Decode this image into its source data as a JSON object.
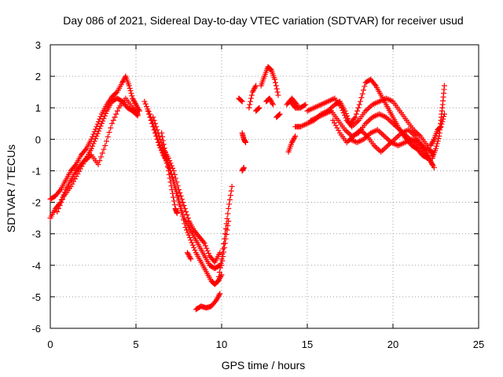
{
  "chart_data": {
    "type": "scatter",
    "title": "Day 086 of 2021, Sidereal Day-to-day VTEC variation (SDTVAR) for receiver usud",
    "xlabel": "GPS time / hours",
    "ylabel": "SDTVAR / TECUs",
    "xlim": [
      0,
      25
    ],
    "ylim": [
      -6,
      3
    ],
    "xticks": [
      0,
      5,
      10,
      15,
      20,
      25
    ],
    "yticks": [
      -6,
      -5,
      -4,
      -3,
      -2,
      -1,
      0,
      1,
      2,
      3
    ],
    "grid": true,
    "marker": "+",
    "series_color": "#ff0000",
    "tracks": [
      [
        [
          0.0,
          -1.9
        ],
        [
          0.3,
          -1.8
        ],
        [
          0.6,
          -1.6
        ],
        [
          0.9,
          -1.3
        ],
        [
          1.2,
          -1.0
        ],
        [
          1.5,
          -0.8
        ],
        [
          1.8,
          -0.5
        ],
        [
          2.1,
          -0.3
        ],
        [
          2.4,
          0.0
        ],
        [
          2.7,
          0.4
        ],
        [
          3.0,
          0.8
        ],
        [
          3.3,
          1.1
        ],
        [
          3.6,
          1.35
        ],
        [
          3.9,
          1.5
        ],
        [
          4.2,
          1.8
        ],
        [
          4.4,
          2.0
        ],
        [
          4.6,
          1.7
        ],
        [
          4.8,
          1.3
        ],
        [
          5.0,
          1.1
        ],
        [
          5.2,
          0.9
        ]
      ],
      [
        [
          0.0,
          -2.5
        ],
        [
          0.3,
          -2.2
        ],
        [
          0.6,
          -2.0
        ],
        [
          0.9,
          -1.6
        ],
        [
          1.2,
          -1.3
        ],
        [
          1.5,
          -1.0
        ],
        [
          1.8,
          -0.8
        ],
        [
          2.1,
          -0.6
        ],
        [
          2.4,
          -0.3
        ],
        [
          2.7,
          0.1
        ],
        [
          3.0,
          0.5
        ],
        [
          3.3,
          0.9
        ],
        [
          3.6,
          1.2
        ],
        [
          3.9,
          1.3
        ],
        [
          4.2,
          1.2
        ],
        [
          4.5,
          1.0
        ],
        [
          4.8,
          0.9
        ],
        [
          5.1,
          0.75
        ]
      ],
      [
        [
          0.4,
          -2.3
        ],
        [
          0.8,
          -1.8
        ],
        [
          1.2,
          -1.5
        ],
        [
          1.6,
          -1.1
        ],
        [
          2.0,
          -0.7
        ],
        [
          2.4,
          -0.5
        ],
        [
          2.8,
          -0.8
        ],
        [
          3.2,
          -0.2
        ],
        [
          3.6,
          0.5
        ],
        [
          4.0,
          1.0
        ],
        [
          4.4,
          1.3
        ],
        [
          4.8,
          1.0
        ],
        [
          5.1,
          0.8
        ]
      ],
      [
        [
          5.5,
          1.2
        ],
        [
          5.8,
          0.8
        ],
        [
          6.1,
          0.3
        ],
        [
          6.4,
          -0.2
        ],
        [
          6.7,
          -0.6
        ],
        [
          7.0,
          -1.0
        ],
        [
          7.3,
          -1.6
        ],
        [
          7.6,
          -2.2
        ],
        [
          7.9,
          -2.8
        ],
        [
          8.2,
          -3.2
        ],
        [
          8.5,
          -3.6
        ],
        [
          8.8,
          -3.9
        ],
        [
          9.1,
          -4.2
        ],
        [
          9.4,
          -4.5
        ],
        [
          9.6,
          -4.6
        ],
        [
          9.8,
          -4.5
        ],
        [
          10.0,
          -4.3
        ]
      ],
      [
        [
          5.7,
          0.9
        ],
        [
          6.0,
          0.4
        ],
        [
          6.3,
          -0.1
        ],
        [
          6.6,
          -0.5
        ],
        [
          6.9,
          -0.8
        ],
        [
          7.2,
          -1.3
        ],
        [
          7.5,
          -1.9
        ],
        [
          7.8,
          -2.5
        ],
        [
          8.1,
          -2.8
        ],
        [
          8.4,
          -3.1
        ],
        [
          8.7,
          -3.4
        ],
        [
          9.0,
          -3.7
        ],
        [
          9.3,
          -4.0
        ],
        [
          9.6,
          -4.1
        ],
        [
          9.9,
          -4.0
        ]
      ],
      [
        [
          6.0,
          0.7
        ],
        [
          6.3,
          0.2
        ],
        [
          6.6,
          -0.3
        ],
        [
          6.9,
          -0.6
        ],
        [
          7.2,
          -1.0
        ],
        [
          7.5,
          -1.6
        ],
        [
          7.8,
          -2.1
        ],
        [
          8.1,
          -2.6
        ],
        [
          8.4,
          -2.9
        ],
        [
          8.7,
          -3.1
        ],
        [
          9.0,
          -3.3
        ],
        [
          9.3,
          -3.7
        ],
        [
          9.6,
          -3.9
        ],
        [
          9.9,
          -3.6
        ]
      ],
      [
        [
          6.5,
          0.2
        ],
        [
          6.7,
          -0.4
        ],
        [
          6.9,
          -1.0
        ],
        [
          7.1,
          -1.6
        ],
        [
          7.3,
          -2.2
        ],
        [
          7.4,
          -2.35
        ]
      ],
      [
        [
          9.8,
          -4.5
        ],
        [
          10.0,
          -3.8
        ],
        [
          10.2,
          -3.0
        ],
        [
          10.4,
          -2.2
        ],
        [
          10.6,
          -1.5
        ]
      ],
      [
        [
          10.0,
          -4.0
        ],
        [
          10.2,
          -3.3
        ],
        [
          10.4,
          -2.6
        ]
      ],
      [
        [
          8.0,
          -3.6
        ],
        [
          8.2,
          -3.8
        ]
      ],
      [
        [
          8.5,
          -5.4
        ],
        [
          8.8,
          -5.3
        ],
        [
          9.1,
          -5.35
        ],
        [
          9.4,
          -5.3
        ],
        [
          9.7,
          -5.1
        ],
        [
          9.9,
          -4.9
        ]
      ],
      [
        [
          11.2,
          -1.0
        ],
        [
          11.3,
          -0.9
        ]
      ],
      [
        [
          11.2,
          0.2
        ],
        [
          11.3,
          0.0
        ],
        [
          11.4,
          -0.1
        ]
      ],
      [
        [
          11.0,
          1.3
        ],
        [
          11.2,
          1.2
        ]
      ],
      [
        [
          11.6,
          1.0
        ],
        [
          11.8,
          1.5
        ],
        [
          12.0,
          1.7
        ]
      ],
      [
        [
          12.3,
          1.7
        ],
        [
          12.5,
          2.0
        ],
        [
          12.7,
          2.3
        ],
        [
          12.9,
          2.2
        ],
        [
          13.1,
          1.9
        ],
        [
          13.3,
          1.4
        ]
      ],
      [
        [
          12.6,
          1.2
        ],
        [
          12.8,
          1.3
        ],
        [
          13.0,
          1.1
        ]
      ],
      [
        [
          12.0,
          0.9
        ],
        [
          12.2,
          1.0
        ]
      ],
      [
        [
          13.2,
          0.7
        ],
        [
          13.4,
          0.8
        ]
      ],
      [
        [
          13.9,
          -0.4
        ],
        [
          14.1,
          -0.1
        ],
        [
          14.3,
          0.1
        ]
      ],
      [
        [
          14.0,
          1.2
        ],
        [
          14.3,
          1.0
        ],
        [
          14.6,
          1.0
        ],
        [
          14.9,
          1.1
        ]
      ],
      [
        [
          13.8,
          1.1
        ],
        [
          14.1,
          1.3
        ],
        [
          14.4,
          1.1
        ]
      ],
      [
        [
          14.3,
          0.4
        ],
        [
          14.6,
          0.4
        ],
        [
          15.0,
          0.5
        ],
        [
          15.4,
          0.6
        ],
        [
          15.8,
          0.8
        ],
        [
          16.2,
          0.9
        ],
        [
          16.6,
          1.1
        ],
        [
          16.9,
          1.2
        ],
        [
          17.2,
          0.9
        ],
        [
          17.5,
          0.5
        ],
        [
          17.8,
          0.7
        ],
        [
          18.1,
          1.2
        ],
        [
          18.4,
          1.8
        ],
        [
          18.7,
          1.9
        ],
        [
          19.0,
          1.7
        ],
        [
          19.3,
          1.4
        ],
        [
          19.6,
          1.1
        ],
        [
          19.9,
          0.8
        ],
        [
          20.2,
          0.5
        ],
        [
          20.5,
          0.2
        ],
        [
          20.8,
          0.0
        ],
        [
          21.1,
          -0.2
        ],
        [
          21.4,
          -0.3
        ],
        [
          21.7,
          -0.5
        ],
        [
          22.0,
          -0.6
        ]
      ],
      [
        [
          15.0,
          0.9
        ],
        [
          15.4,
          1.0
        ],
        [
          15.8,
          1.1
        ],
        [
          16.2,
          1.2
        ],
        [
          16.6,
          1.3
        ],
        [
          17.0,
          1.0
        ],
        [
          17.3,
          0.6
        ],
        [
          17.6,
          0.4
        ],
        [
          18.0,
          0.6
        ],
        [
          18.4,
          0.9
        ],
        [
          18.8,
          1.1
        ],
        [
          19.2,
          1.2
        ],
        [
          19.6,
          1.3
        ],
        [
          20.0,
          1.2
        ],
        [
          20.4,
          0.9
        ],
        [
          20.8,
          0.6
        ],
        [
          21.2,
          0.3
        ],
        [
          21.6,
          0.1
        ],
        [
          22.0,
          -0.2
        ],
        [
          22.3,
          -0.5
        ]
      ],
      [
        [
          15.2,
          0.6
        ],
        [
          15.6,
          0.7
        ],
        [
          16.0,
          0.8
        ],
        [
          16.4,
          0.9
        ],
        [
          16.8,
          0.6
        ],
        [
          17.2,
          0.3
        ],
        [
          17.6,
          0.1
        ],
        [
          18.0,
          0.2
        ],
        [
          18.4,
          0.5
        ],
        [
          18.8,
          0.7
        ],
        [
          19.2,
          0.8
        ],
        [
          19.6,
          0.7
        ],
        [
          20.0,
          0.5
        ],
        [
          20.4,
          0.3
        ],
        [
          20.8,
          0.1
        ],
        [
          21.2,
          -0.1
        ],
        [
          21.6,
          -0.3
        ],
        [
          22.0,
          -0.5
        ],
        [
          22.3,
          -0.8
        ]
      ],
      [
        [
          16.5,
          0.6
        ],
        [
          16.9,
          0.2
        ],
        [
          17.3,
          -0.1
        ],
        [
          17.7,
          0.1
        ],
        [
          18.1,
          0.3
        ],
        [
          18.5,
          0.1
        ],
        [
          18.9,
          -0.2
        ],
        [
          19.3,
          -0.4
        ],
        [
          19.7,
          -0.2
        ],
        [
          20.1,
          0.0
        ],
        [
          20.5,
          0.2
        ],
        [
          20.9,
          0.3
        ],
        [
          21.3,
          0.1
        ],
        [
          21.7,
          -0.2
        ],
        [
          22.1,
          -0.6
        ],
        [
          22.4,
          -0.9
        ]
      ],
      [
        [
          17.5,
          0.0
        ],
        [
          17.9,
          -0.1
        ],
        [
          18.3,
          0.0
        ],
        [
          18.7,
          0.2
        ],
        [
          19.1,
          0.3
        ],
        [
          19.5,
          0.1
        ],
        [
          19.9,
          -0.1
        ],
        [
          20.3,
          -0.2
        ],
        [
          20.7,
          -0.1
        ],
        [
          21.1,
          0.0
        ],
        [
          21.5,
          -0.1
        ],
        [
          21.9,
          -0.3
        ],
        [
          22.3,
          -0.4
        ]
      ],
      [
        [
          22.3,
          -0.6
        ],
        [
          22.5,
          -0.3
        ],
        [
          22.7,
          0.1
        ],
        [
          22.8,
          0.6
        ],
        [
          22.9,
          1.1
        ],
        [
          23.0,
          1.7
        ]
      ],
      [
        [
          22.2,
          -0.2
        ],
        [
          22.4,
          0.0
        ],
        [
          22.6,
          0.3
        ],
        [
          22.8,
          0.4
        ],
        [
          23.0,
          0.8
        ]
      ]
    ]
  }
}
